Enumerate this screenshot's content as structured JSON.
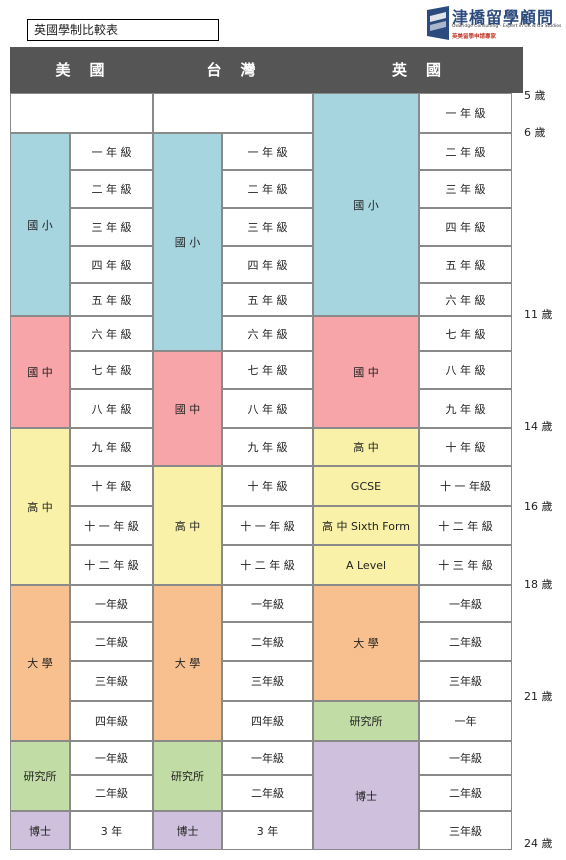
{
  "title": "英國學制比較表",
  "logo": {
    "name": "津橋留學顧問",
    "subtitle": "OxBridge Consulting - Expert in UK & US Studies",
    "tagline": "英美留學申請專家",
    "brand_color": "#2b4a7d"
  },
  "headers": {
    "us": "美　國",
    "tw": "台　灣",
    "uk": "英　國"
  },
  "us": {
    "stages": {
      "elementary": "國 小",
      "middle": "國 中",
      "high": "高 中",
      "university": "大 學",
      "graduate": "研究所",
      "doctorate": "博士"
    },
    "grades": [
      "一 年 級",
      "二 年 級",
      "三 年 級",
      "四 年 級",
      "五 年 級",
      "六 年 級",
      "七 年 級",
      "八 年 級",
      "九 年 級",
      "十 年 級",
      "十 一 年 級",
      "十 二 年 級",
      "一年級",
      "二年級",
      "三年級",
      "四年級",
      "一年級",
      "二年級",
      "3 年"
    ]
  },
  "tw": {
    "stages": {
      "elementary": "國 小",
      "middle": "國 中",
      "high": "高 中",
      "university": "大 學",
      "graduate": "研究所",
      "doctorate": "博士"
    },
    "grades": [
      "一 年 級",
      "二 年 級",
      "三 年 級",
      "四 年 級",
      "五 年 級",
      "六 年 級",
      "七 年 級",
      "八 年 級",
      "九 年 級",
      "十 年 級",
      "十 一 年 級",
      "十 二 年 級",
      "一年級",
      "二年級",
      "三年級",
      "四年級",
      "一年級",
      "二年級",
      "3 年"
    ]
  },
  "uk": {
    "stages": {
      "primary": "國 小",
      "middle": "國 中",
      "high": "高 中",
      "gcse": "GCSE",
      "sixth_form": "高 中 Sixth Form",
      "a_level": "A Level",
      "university": "大 學",
      "graduate": "研究所",
      "doctorate": "博士"
    },
    "grades": [
      "一 年 級",
      "二 年 級",
      "三 年 級",
      "四 年 級",
      "五 年 級",
      "六 年 級",
      "七 年 級",
      "八 年 級",
      "九 年 級",
      "十 年 級",
      "十 一 年級",
      "十 二 年 級",
      "十 三 年 級",
      "一年級",
      "二年級",
      "三年級",
      "一年",
      "一年級",
      "二年級",
      "三年級"
    ]
  },
  "ages": [
    "5 歲",
    "6 歲",
    "11 歲",
    "14 歲",
    "16 歲",
    "18 歲",
    "21 歲",
    "24 歲"
  ],
  "colors": {
    "elementary": "#a6d5e0",
    "middle": "#f7a5a9",
    "high": "#f8f1a7",
    "university": "#f8c08f",
    "graduate": "#c1dca5",
    "doctorate": "#cfc1dd",
    "header": "#555555"
  }
}
